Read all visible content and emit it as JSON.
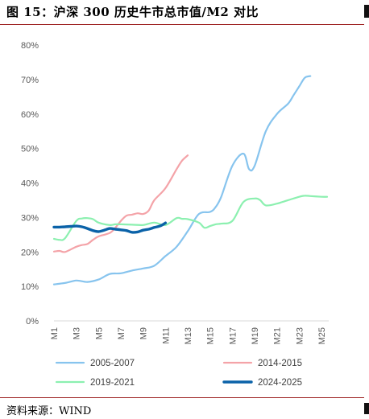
{
  "title": "图 15：沪深 300 历史牛市总市值/M2 对比",
  "source": "资料来源：WIND",
  "chart_data": {
    "type": "line",
    "title": "",
    "xlabel": "",
    "ylabel": "",
    "ylim": [
      0,
      80
    ],
    "yticks": [
      "0%",
      "10%",
      "20%",
      "30%",
      "40%",
      "50%",
      "60%",
      "70%",
      "80%"
    ],
    "xticks": [
      "M1",
      "M3",
      "M5",
      "M7",
      "M9",
      "M11",
      "M13",
      "M15",
      "M17",
      "M19",
      "M21",
      "M23",
      "M25"
    ],
    "legend": "bottom",
    "grid": false,
    "series": [
      {
        "name": "2005-2007",
        "color": "#87c4ee",
        "width": 2.2,
        "x": [
          1,
          2,
          3,
          4,
          5,
          6,
          7,
          8,
          9,
          10,
          11,
          12,
          13,
          14,
          15,
          15.5,
          16,
          17,
          18,
          18.5,
          19,
          20,
          21,
          22,
          22.5,
          23,
          23.5,
          24
        ],
        "y": [
          10.6,
          11.0,
          11.7,
          11.3,
          12.0,
          13.6,
          13.8,
          14.6,
          15.2,
          16.0,
          18.8,
          21.5,
          26.0,
          31.0,
          31.6,
          33.0,
          36.0,
          45.0,
          48.5,
          44.0,
          45.0,
          55.0,
          60.0,
          63.0,
          65.5,
          68.0,
          70.5,
          71.0
        ]
      },
      {
        "name": "2014-2015",
        "color": "#f4a3a8",
        "width": 2.2,
        "x": [
          1,
          1.5,
          2,
          3,
          3.5,
          4,
          4.5,
          5,
          6,
          6.5,
          7,
          7.5,
          8,
          8.5,
          9,
          9.5,
          10,
          11,
          12,
          12.5,
          13
        ],
        "y": [
          20.1,
          20.3,
          20.0,
          21.5,
          22.0,
          22.3,
          23.5,
          24.5,
          25.5,
          27.0,
          29.0,
          30.5,
          30.8,
          31.2,
          31.0,
          32.0,
          35.0,
          38.5,
          44.0,
          46.5,
          48.0
        ]
      },
      {
        "name": "2019-2021",
        "color": "#8cf0b0",
        "width": 2.2,
        "x": [
          1,
          1.5,
          2,
          3,
          3.5,
          4,
          4.5,
          5,
          6,
          6.5,
          7,
          8,
          9,
          10,
          11,
          12,
          12.5,
          13,
          14,
          14.5,
          15,
          15.5,
          16,
          17,
          18,
          19,
          19.5,
          20,
          21,
          21.5,
          22,
          23,
          23.5,
          24,
          25,
          25.5
        ],
        "y": [
          23.8,
          23.5,
          24.0,
          29.0,
          29.7,
          29.8,
          29.5,
          28.5,
          27.8,
          28.0,
          28.0,
          27.9,
          27.8,
          28.5,
          27.8,
          29.8,
          29.6,
          29.5,
          28.5,
          27.0,
          27.5,
          28.0,
          28.2,
          29.0,
          34.5,
          35.5,
          35.0,
          33.5,
          34.0,
          34.5,
          35.0,
          36.0,
          36.3,
          36.2,
          36.0,
          36.0
        ]
      },
      {
        "name": "2024-2025",
        "color": "#0a62a8",
        "width": 3.4,
        "x": [
          1,
          1.5,
          2,
          2.5,
          3,
          3.5,
          4,
          4.5,
          5,
          5.5,
          6,
          6.5,
          7,
          7.5,
          8,
          8.5,
          9,
          9.5,
          10,
          10.5,
          11
        ],
        "y": [
          27.2,
          27.2,
          27.3,
          27.4,
          27.5,
          27.3,
          26.8,
          26.2,
          25.9,
          26.3,
          26.8,
          26.6,
          26.4,
          26.2,
          25.7,
          25.8,
          26.3,
          26.6,
          27.1,
          27.5,
          28.4
        ]
      }
    ]
  }
}
